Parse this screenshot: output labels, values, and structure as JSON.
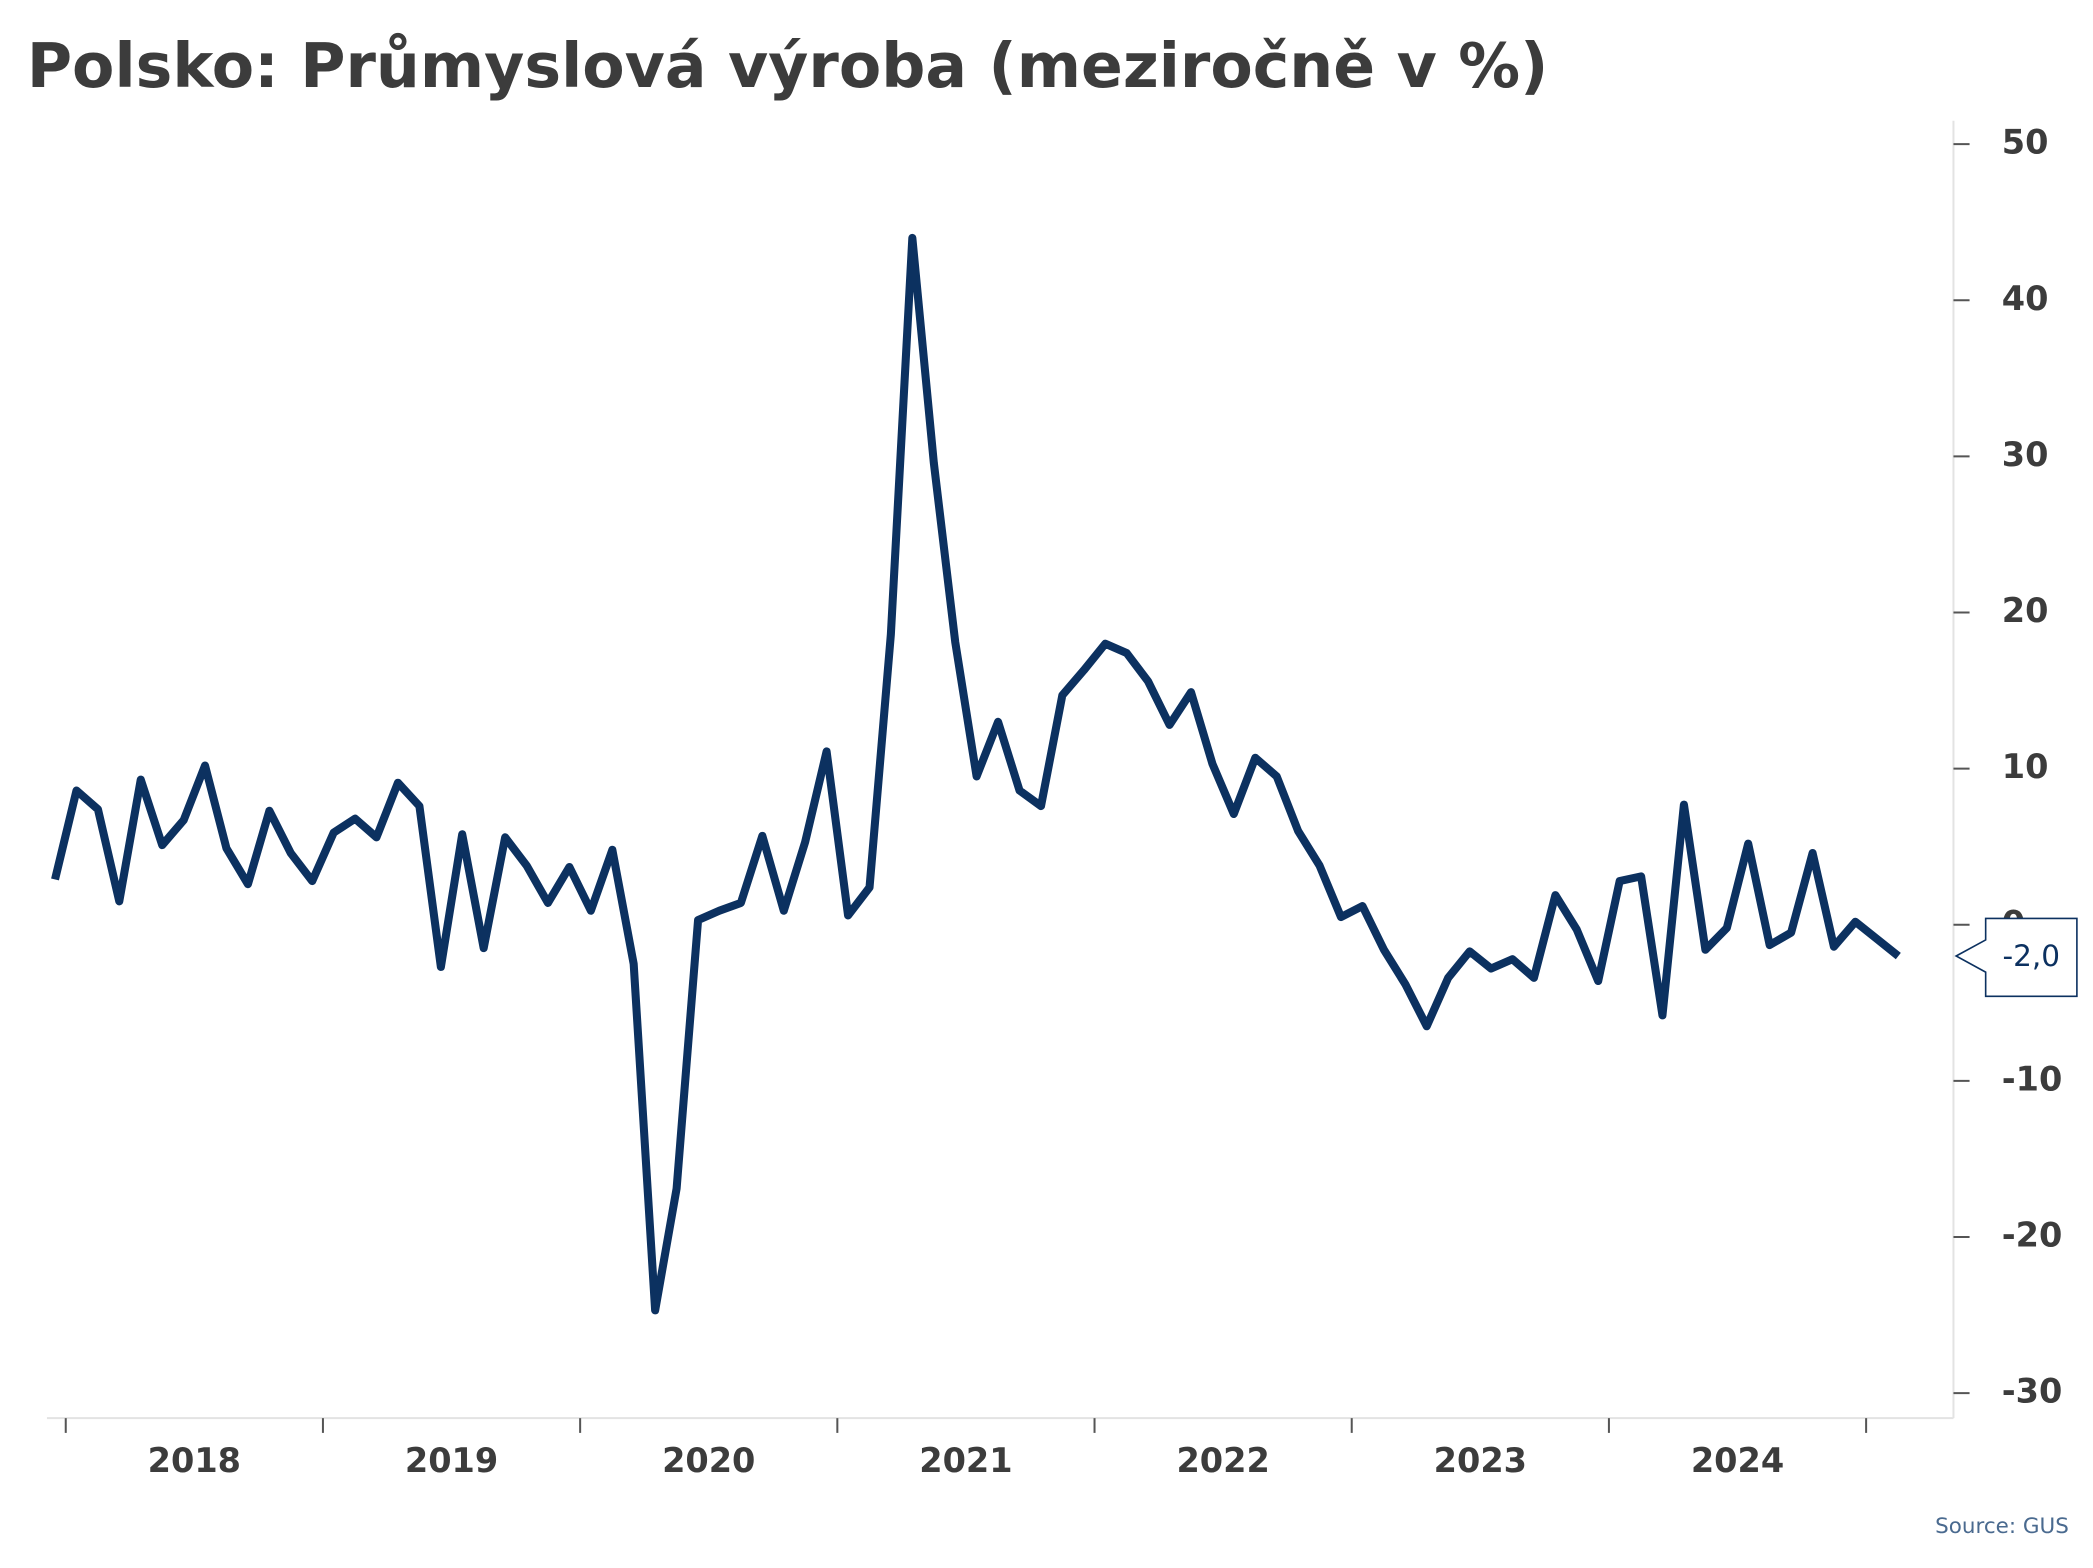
{
  "chart_data": {
    "type": "line",
    "title": "Polsko: Průmyslová výroba (meziročně v %)",
    "source": "Source: GUS",
    "year_labels": [
      "2018",
      "2019",
      "2020",
      "2021",
      "2022",
      "2023",
      "2024"
    ],
    "series": [
      {
        "name": "Průmyslová výroba",
        "color": "#0c3160",
        "values": [
          2.9,
          8.6,
          7.4,
          1.5,
          9.3,
          5.1,
          6.7,
          10.2,
          4.9,
          2.6,
          7.3,
          4.6,
          2.8,
          5.9,
          6.8,
          5.6,
          9.1,
          7.6,
          -2.7,
          5.8,
          -1.5,
          5.6,
          3.8,
          1.4,
          3.7,
          0.9,
          4.8,
          -2.5,
          -24.7,
          -16.9,
          0.3,
          0.9,
          1.4,
          5.7,
          0.9,
          5.3,
          11.1,
          0.6,
          2.4,
          18.6,
          44.0,
          29.6,
          18.1,
          9.5,
          13.0,
          8.6,
          7.6,
          14.7,
          16.3,
          18.0,
          17.4,
          15.6,
          12.8,
          14.9,
          10.3,
          7.1,
          10.7,
          9.5,
          6.0,
          3.8,
          0.5,
          1.2,
          -1.6,
          -3.8,
          -6.5,
          -3.4,
          -1.7,
          -2.8,
          -2.2,
          -3.4,
          1.9,
          -0.3,
          -3.6,
          2.8,
          3.1,
          -5.8,
          7.7,
          -1.6,
          -0.2,
          5.2,
          -1.3,
          -0.5,
          4.6,
          -1.4,
          0.2,
          -0.9,
          -2.0
        ],
        "last_value_label": "-2,0"
      }
    ],
    "ylim": [
      -31.6,
      51.5
    ],
    "yticks": [
      -30,
      -20,
      -10,
      0,
      10,
      20,
      30,
      40,
      50
    ],
    "y_axis_side": "right"
  }
}
